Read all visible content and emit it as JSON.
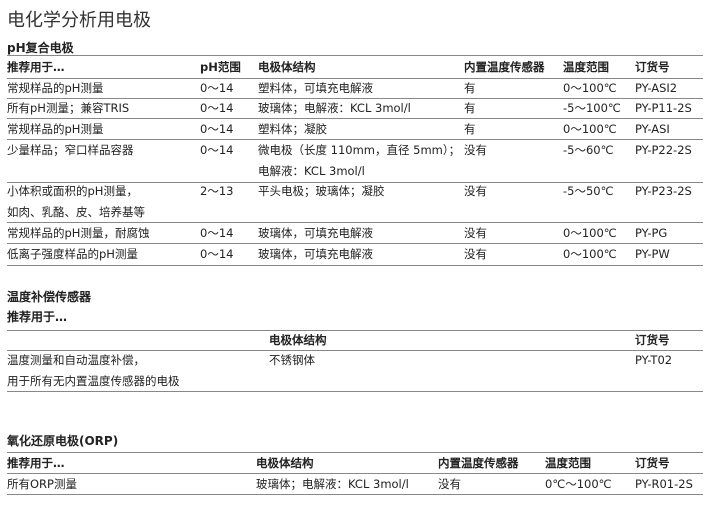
{
  "title": "电化学分析用电极",
  "ph_section": {
    "heading": "pH复合电极",
    "headers": [
      "推荐用于…",
      "pH范围",
      "电极体结构",
      "内置温度传感器",
      "温度范围",
      "订货号"
    ],
    "rows": [
      {
        "use": [
          "常规样品的pH测量"
        ],
        "ph": "0～14",
        "body": [
          "塑料体，可填充电解液"
        ],
        "sensor": "有",
        "temp": "0～100℃",
        "order": "PY-ASI2"
      },
      {
        "use": [
          "所有pH测量；兼容TRIS"
        ],
        "ph": "0～14",
        "body": [
          "玻璃体；电解液：KCL 3mol/l"
        ],
        "sensor": "有",
        "temp": "-5～100℃",
        "order": "PY-P11-2S"
      },
      {
        "use": [
          "常规样品的pH测量"
        ],
        "ph": "0～14",
        "body": [
          "塑料体；凝胶"
        ],
        "sensor": "有",
        "temp": "0～100℃",
        "order": "PY-ASI"
      },
      {
        "use": [
          "少量样品；窄口样品容器"
        ],
        "ph": "0～14",
        "body": [
          "微电极（长度 110mm，直径 5mm）；",
          "电解液：KCL 3mol/l"
        ],
        "sensor": "没有",
        "temp": "-5～60℃",
        "order": "PY-P22-2S"
      },
      {
        "use": [
          "小体积或面积的pH测量，",
          "如肉、乳酪、皮、培养基等"
        ],
        "ph": "2～13",
        "body": [
          "平头电极；玻璃体；凝胶"
        ],
        "sensor": "没有",
        "temp": "-5～50℃",
        "order": "PY-P23-2S"
      },
      {
        "use": [
          "常规样品的pH测量，耐腐蚀"
        ],
        "ph": "0～14",
        "body": [
          "玻璃体，可填充电解液"
        ],
        "sensor": "没有",
        "temp": "0～100℃",
        "order": "PY-PG"
      },
      {
        "use": [
          "低离子强度样品的pH测量"
        ],
        "ph": "0～14",
        "body": [
          "玻璃体，可填充电解液"
        ],
        "sensor": "没有",
        "temp": "0～100℃",
        "order": "PY-PW"
      }
    ]
  },
  "temp_section": {
    "heading": "温度补偿传感器",
    "subheading": "推荐用于…",
    "headers": [
      "电极体结构",
      "订货号"
    ],
    "rows": [
      {
        "use": [
          "温度测量和自动温度补偿，",
          "用于所有无内置温度传感器的电极"
        ],
        "body": "不锈钢体",
        "order": "PY-T02"
      }
    ]
  },
  "orp_section": {
    "heading": "氧化还原电极(ORP)",
    "headers": [
      "推荐用于…",
      "电极体结构",
      "内置温度传感器",
      "温度范围",
      "订货号"
    ],
    "rows": [
      {
        "use": "所有ORP测量",
        "body": "玻璃体；电解液：KCL 3mol/l",
        "sensor": "没有",
        "temp": "0℃～100℃",
        "order": "PY-R01-2S"
      }
    ]
  }
}
